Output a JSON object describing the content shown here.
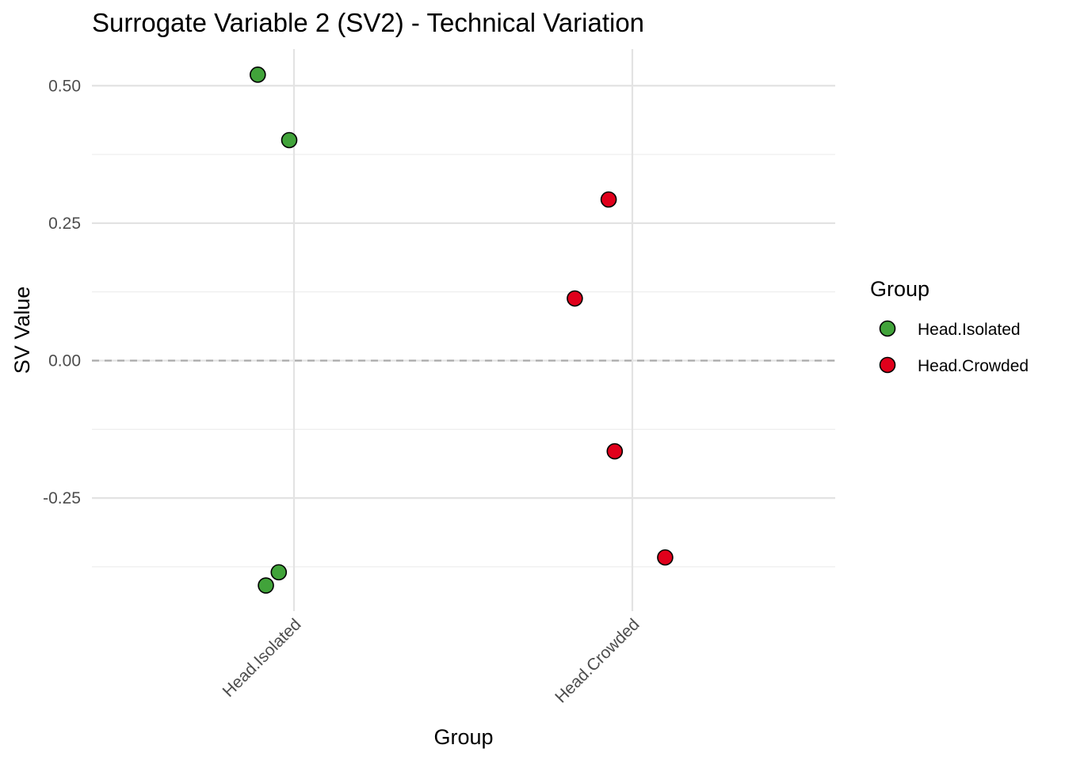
{
  "chart_data": {
    "type": "scatter",
    "title": "Surrogate Variable 2 (SV2) - Technical Variation",
    "xlabel": "Group",
    "ylabel": "SV Value",
    "categories": [
      "Head.Isolated",
      "Head.Crowded"
    ],
    "y_ticks": [
      {
        "value": 0.5,
        "label": "0.50"
      },
      {
        "value": 0.25,
        "label": "0.25"
      },
      {
        "value": 0.0,
        "label": "0.00"
      },
      {
        "value": -0.25,
        "label": "-0.25"
      }
    ],
    "y_minor_ticks": [
      0.375,
      0.125,
      -0.125,
      -0.375
    ],
    "ylim": [
      -0.465,
      0.565
    ],
    "reference_line": {
      "y": 0,
      "style": "dashed",
      "color": "#aaaaaa"
    },
    "grid": true,
    "legend": {
      "title": "Group",
      "position": "right",
      "entries": [
        {
          "label": "Head.Isolated",
          "color": "#41a33a"
        },
        {
          "label": "Head.Crowded",
          "color": "#e0001b"
        }
      ]
    },
    "series": [
      {
        "name": "Head.Isolated",
        "color": "#41a33a",
        "points": [
          {
            "category": "Head.Isolated",
            "jitter": -0.107,
            "y": 0.52
          },
          {
            "category": "Head.Isolated",
            "jitter": -0.014,
            "y": 0.401
          },
          {
            "category": "Head.Isolated",
            "jitter": -0.045,
            "y": -0.385
          },
          {
            "category": "Head.Isolated",
            "jitter": -0.083,
            "y": -0.409
          }
        ]
      },
      {
        "name": "Head.Crowded",
        "color": "#e0001b",
        "points": [
          {
            "category": "Head.Crowded",
            "jitter": -0.07,
            "y": 0.293
          },
          {
            "category": "Head.Crowded",
            "jitter": -0.17,
            "y": 0.113
          },
          {
            "category": "Head.Crowded",
            "jitter": -0.052,
            "y": -0.165
          },
          {
            "category": "Head.Crowded",
            "jitter": 0.097,
            "y": -0.358
          }
        ]
      }
    ]
  }
}
